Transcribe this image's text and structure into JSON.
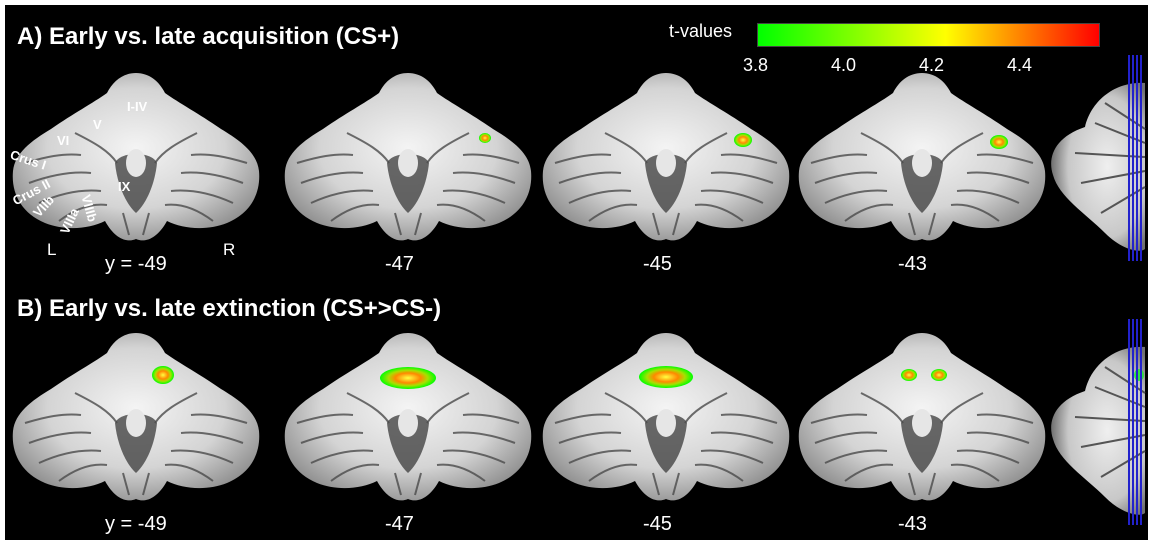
{
  "panel_a": {
    "title": "A) Early vs. late acquisition (CS+)",
    "slice_labels": [
      "y = -49",
      "-47",
      "-45",
      "-43"
    ],
    "anatomy_labels": [
      "I-IV",
      "V",
      "VI",
      "Crus I",
      "Crus II",
      "VIIb",
      "VIIIa",
      "VIIIb",
      "IX"
    ],
    "side_left": "L",
    "side_right": "R"
  },
  "panel_b": {
    "title": "B) Early vs. late extinction (CS+>CS-)",
    "slice_labels": [
      "y = -49",
      "-47",
      "-45",
      "-43"
    ]
  },
  "colorbar": {
    "title": "t-values",
    "ticks": [
      "3.8",
      "4.0",
      "4.2",
      "4.4"
    ],
    "colors": [
      "#00ff00",
      "#ffff00",
      "#ff0000"
    ]
  },
  "colors": {
    "background": "#000000",
    "border": "#ffffff",
    "slice_lines": "#2222cc"
  }
}
